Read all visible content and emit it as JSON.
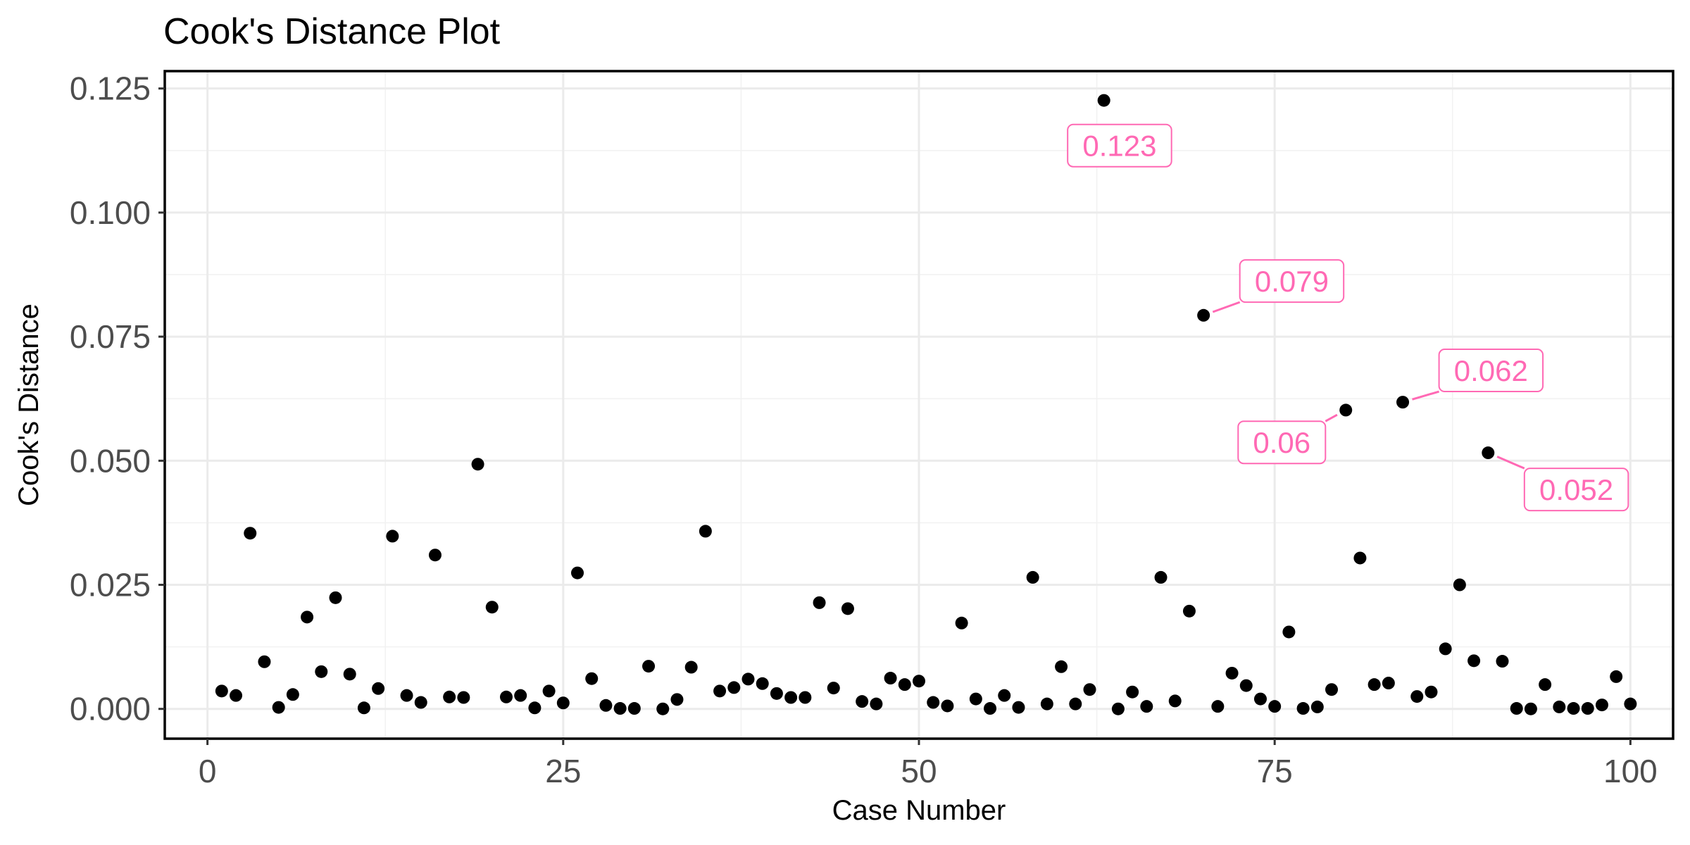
{
  "chart_data": {
    "type": "scatter",
    "title": "Cook's Distance Plot",
    "xlabel": "Case Number",
    "ylabel": "Cook's Distance",
    "xlim": [
      -3,
      103
    ],
    "ylim": [
      -0.006,
      0.1285
    ],
    "x_ticks": [
      0,
      25,
      50,
      75,
      100
    ],
    "x_tick_labels": [
      "0",
      "25",
      "50",
      "75",
      "100"
    ],
    "y_ticks": [
      0.0,
      0.025,
      0.05,
      0.075,
      0.1,
      0.125
    ],
    "y_tick_labels": [
      "0.000",
      "0.025",
      "0.050",
      "0.075",
      "0.100",
      "0.125"
    ],
    "grid": true,
    "point_color": "#000000",
    "label_color": "#ff69b4",
    "x": [
      1,
      2,
      3,
      4,
      5,
      6,
      7,
      8,
      9,
      10,
      11,
      12,
      13,
      14,
      15,
      16,
      17,
      18,
      19,
      20,
      21,
      22,
      23,
      24,
      25,
      26,
      27,
      28,
      29,
      30,
      31,
      32,
      33,
      34,
      35,
      36,
      37,
      38,
      39,
      40,
      41,
      42,
      43,
      44,
      45,
      46,
      47,
      48,
      49,
      50,
      51,
      52,
      53,
      54,
      55,
      56,
      57,
      58,
      59,
      60,
      61,
      62,
      63,
      64,
      65,
      66,
      67,
      68,
      69,
      70,
      71,
      72,
      73,
      74,
      75,
      76,
      77,
      78,
      79,
      80,
      81,
      82,
      83,
      84,
      85,
      86,
      87,
      88,
      89,
      90,
      91,
      92,
      93,
      94,
      95,
      96,
      97,
      98,
      99,
      100
    ],
    "y": [
      0.0036,
      0.0027,
      0.0354,
      0.0095,
      0.0003,
      0.0029,
      0.0185,
      0.0075,
      0.0224,
      0.007,
      0.0002,
      0.0041,
      0.0348,
      0.0027,
      0.0013,
      0.031,
      0.0024,
      0.0023,
      0.0493,
      0.0205,
      0.0024,
      0.0027,
      0.0002,
      0.0036,
      0.0012,
      0.0274,
      0.0061,
      0.0007,
      0.0001,
      0.0001,
      0.0086,
      0.0,
      0.0019,
      0.0084,
      0.0358,
      0.0036,
      0.0043,
      0.006,
      0.0051,
      0.0031,
      0.0023,
      0.0023,
      0.0214,
      0.0042,
      0.0202,
      0.0015,
      0.001,
      0.0062,
      0.0049,
      0.0056,
      0.0013,
      0.0006,
      0.0173,
      0.002,
      0.0001,
      0.0027,
      0.0003,
      0.0265,
      0.001,
      0.0085,
      0.001,
      0.0039,
      0.1226,
      0.0,
      0.0034,
      0.0005,
      0.0265,
      0.0016,
      0.0197,
      0.0793,
      0.0005,
      0.0072,
      0.0047,
      0.002,
      0.0005,
      0.0155,
      0.0001,
      0.0004,
      0.0039,
      0.0602,
      0.0304,
      0.0049,
      0.0052,
      0.0618,
      0.0025,
      0.0034,
      0.0121,
      0.025,
      0.0097,
      0.0516,
      0.0096,
      0.0001,
      0.0,
      0.0049,
      0.0004,
      0.0001,
      0.0001,
      0.0008,
      0.0065,
      0.001
    ],
    "annotations": [
      {
        "x": 63,
        "y": 0.1226,
        "text": "0.123",
        "label_x": 64.1,
        "label_y": 0.1135
      },
      {
        "x": 70,
        "y": 0.0793,
        "text": "0.079",
        "label_x": 76.2,
        "label_y": 0.0862
      },
      {
        "x": 80,
        "y": 0.0602,
        "text": "0.06",
        "label_x": 75.5,
        "label_y": 0.0537
      },
      {
        "x": 84,
        "y": 0.0618,
        "text": "0.062",
        "label_x": 90.2,
        "label_y": 0.0682
      },
      {
        "x": 90,
        "y": 0.0516,
        "text": "0.052",
        "label_x": 96.2,
        "label_y": 0.0442
      }
    ]
  }
}
